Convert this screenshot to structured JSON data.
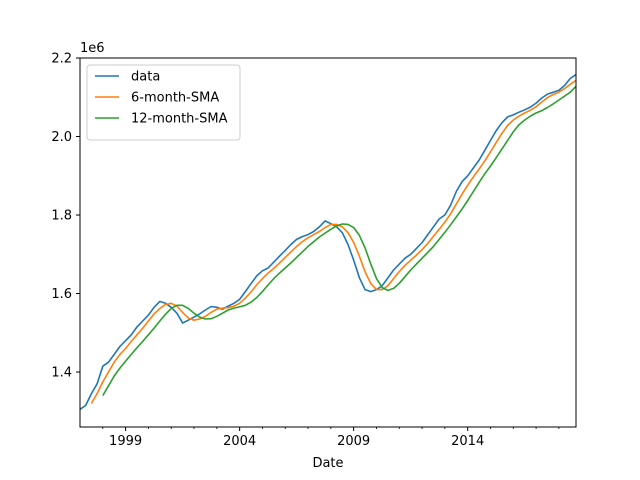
{
  "chart_data": {
    "type": "line",
    "xlabel": "Date",
    "ylabel": "",
    "y_offset_label": "1e6",
    "xlim": [
      1997.0,
      2018.75
    ],
    "ylim": [
      1260000,
      2200000
    ],
    "x_ticks": [
      {
        "value": 1999,
        "label": "1999"
      },
      {
        "value": 2004,
        "label": "2004"
      },
      {
        "value": 2009,
        "label": "2009"
      },
      {
        "value": 2014,
        "label": "2014"
      }
    ],
    "x_minor_ticks": [
      1998,
      2000,
      2001,
      2002,
      2003,
      2005,
      2006,
      2007,
      2008,
      2010,
      2011,
      2012,
      2013,
      2015,
      2016,
      2017,
      2018
    ],
    "y_ticks": [
      {
        "value": 1400000,
        "label": "1.4"
      },
      {
        "value": 1600000,
        "label": "1.6"
      },
      {
        "value": 1800000,
        "label": "1.8"
      },
      {
        "value": 2000000,
        "label": "2.0"
      },
      {
        "value": 2200000,
        "label": "2.2"
      }
    ],
    "legend": "top-left",
    "grid": false,
    "series": [
      {
        "name": "data",
        "color": "#1f77b4",
        "x": [
          1997.0,
          1997.25,
          1997.5,
          1997.75,
          1998.0,
          1998.25,
          1998.5,
          1998.75,
          1999.0,
          1999.25,
          1999.5,
          1999.75,
          2000.0,
          2000.25,
          2000.5,
          2000.75,
          2001.0,
          2001.25,
          2001.5,
          2001.75,
          2002.0,
          2002.25,
          2002.5,
          2002.75,
          2003.0,
          2003.25,
          2003.5,
          2003.75,
          2004.0,
          2004.25,
          2004.5,
          2004.75,
          2005.0,
          2005.25,
          2005.5,
          2005.75,
          2006.0,
          2006.25,
          2006.5,
          2006.75,
          2007.0,
          2007.25,
          2007.5,
          2007.75,
          2008.0,
          2008.25,
          2008.5,
          2008.75,
          2009.0,
          2009.25,
          2009.5,
          2009.75,
          2010.0,
          2010.25,
          2010.5,
          2010.75,
          2011.0,
          2011.25,
          2011.5,
          2011.75,
          2012.0,
          2012.25,
          2012.5,
          2012.75,
          2013.0,
          2013.25,
          2013.5,
          2013.75,
          2014.0,
          2014.25,
          2014.5,
          2014.75,
          2015.0,
          2015.25,
          2015.5,
          2015.75,
          2016.0,
          2016.25,
          2016.5,
          2016.75,
          2017.0,
          2017.25,
          2017.5,
          2017.75,
          2018.0,
          2018.25,
          2018.5,
          2018.75
        ],
        "y": [
          1305000,
          1315000,
          1345000,
          1370000,
          1415000,
          1425000,
          1445000,
          1465000,
          1480000,
          1495000,
          1515000,
          1530000,
          1545000,
          1565000,
          1580000,
          1575000,
          1565000,
          1550000,
          1525000,
          1532000,
          1540000,
          1548000,
          1558000,
          1567000,
          1565000,
          1560000,
          1568000,
          1575000,
          1585000,
          1605000,
          1625000,
          1645000,
          1658000,
          1665000,
          1680000,
          1695000,
          1710000,
          1725000,
          1738000,
          1745000,
          1750000,
          1758000,
          1770000,
          1785000,
          1778000,
          1770000,
          1755000,
          1725000,
          1685000,
          1640000,
          1610000,
          1605000,
          1610000,
          1620000,
          1640000,
          1660000,
          1675000,
          1690000,
          1700000,
          1715000,
          1730000,
          1750000,
          1770000,
          1790000,
          1800000,
          1825000,
          1860000,
          1885000,
          1900000,
          1920000,
          1940000,
          1965000,
          1990000,
          2015000,
          2035000,
          2050000,
          2055000,
          2062000,
          2068000,
          2075000,
          2085000,
          2098000,
          2108000,
          2113000,
          2118000,
          2130000,
          2148000,
          2158000
        ]
      },
      {
        "name": "6-month-SMA",
        "color": "#ff7f0e",
        "x": [
          1997.5,
          1997.75,
          1998.0,
          1998.25,
          1998.5,
          1998.75,
          1999.0,
          1999.25,
          1999.5,
          1999.75,
          2000.0,
          2000.25,
          2000.5,
          2000.75,
          2001.0,
          2001.25,
          2001.5,
          2001.75,
          2002.0,
          2002.25,
          2002.5,
          2002.75,
          2003.0,
          2003.25,
          2003.5,
          2003.75,
          2004.0,
          2004.25,
          2004.5,
          2004.75,
          2005.0,
          2005.25,
          2005.5,
          2005.75,
          2006.0,
          2006.25,
          2006.5,
          2006.75,
          2007.0,
          2007.25,
          2007.5,
          2007.75,
          2008.0,
          2008.25,
          2008.5,
          2008.75,
          2009.0,
          2009.25,
          2009.5,
          2009.75,
          2010.0,
          2010.25,
          2010.5,
          2010.75,
          2011.0,
          2011.25,
          2011.5,
          2011.75,
          2012.0,
          2012.25,
          2012.5,
          2012.75,
          2013.0,
          2013.25,
          2013.5,
          2013.75,
          2014.0,
          2014.25,
          2014.5,
          2014.75,
          2015.0,
          2015.25,
          2015.5,
          2015.75,
          2016.0,
          2016.25,
          2016.5,
          2016.75,
          2017.0,
          2017.25,
          2017.5,
          2017.75,
          2018.0,
          2018.25,
          2018.5,
          2018.75
        ],
        "y": [
          1320000,
          1345000,
          1375000,
          1400000,
          1425000,
          1445000,
          1460000,
          1478000,
          1495000,
          1512000,
          1530000,
          1548000,
          1562000,
          1572000,
          1575000,
          1568000,
          1552000,
          1538000,
          1532000,
          1535000,
          1542000,
          1552000,
          1560000,
          1563000,
          1564000,
          1568000,
          1575000,
          1588000,
          1604000,
          1622000,
          1638000,
          1652000,
          1664000,
          1678000,
          1692000,
          1706000,
          1720000,
          1732000,
          1742000,
          1750000,
          1758000,
          1768000,
          1776000,
          1776000,
          1770000,
          1755000,
          1730000,
          1695000,
          1655000,
          1625000,
          1610000,
          1610000,
          1620000,
          1638000,
          1656000,
          1672000,
          1685000,
          1698000,
          1712000,
          1728000,
          1746000,
          1764000,
          1782000,
          1803000,
          1828000,
          1853000,
          1876000,
          1897000,
          1917000,
          1938000,
          1961000,
          1985000,
          2008000,
          2028000,
          2042000,
          2052000,
          2060000,
          2067000,
          2076000,
          2088000,
          2099000,
          2107000,
          2113000,
          2122000,
          2133000,
          2143000
        ]
      },
      {
        "name": "12-month-SMA",
        "color": "#2ca02c",
        "x": [
          1998.0,
          1998.25,
          1998.5,
          1998.75,
          1999.0,
          1999.25,
          1999.5,
          1999.75,
          2000.0,
          2000.25,
          2000.5,
          2000.75,
          2001.0,
          2001.25,
          2001.5,
          2001.75,
          2002.0,
          2002.25,
          2002.5,
          2002.75,
          2003.0,
          2003.25,
          2003.5,
          2003.75,
          2004.0,
          2004.25,
          2004.5,
          2004.75,
          2005.0,
          2005.25,
          2005.5,
          2005.75,
          2006.0,
          2006.25,
          2006.5,
          2006.75,
          2007.0,
          2007.25,
          2007.5,
          2007.75,
          2008.0,
          2008.25,
          2008.5,
          2008.75,
          2009.0,
          2009.25,
          2009.5,
          2009.75,
          2010.0,
          2010.25,
          2010.5,
          2010.75,
          2011.0,
          2011.25,
          2011.5,
          2011.75,
          2012.0,
          2012.25,
          2012.5,
          2012.75,
          2013.0,
          2013.25,
          2013.5,
          2013.75,
          2014.0,
          2014.25,
          2014.5,
          2014.75,
          2015.0,
          2015.25,
          2015.5,
          2015.75,
          2016.0,
          2016.25,
          2016.5,
          2016.75,
          2017.0,
          2017.25,
          2017.5,
          2017.75,
          2018.0,
          2018.25,
          2018.5,
          2018.75
        ],
        "y": [
          1340000,
          1365000,
          1390000,
          1410000,
          1428000,
          1445000,
          1462000,
          1478000,
          1495000,
          1512000,
          1530000,
          1547000,
          1562000,
          1570000,
          1570000,
          1562000,
          1550000,
          1540000,
          1535000,
          1536000,
          1542000,
          1550000,
          1558000,
          1563000,
          1566000,
          1570000,
          1578000,
          1590000,
          1605000,
          1622000,
          1638000,
          1652000,
          1665000,
          1678000,
          1692000,
          1706000,
          1720000,
          1732000,
          1744000,
          1754000,
          1764000,
          1772000,
          1777000,
          1776000,
          1768000,
          1748000,
          1716000,
          1675000,
          1638000,
          1615000,
          1608000,
          1613000,
          1626000,
          1643000,
          1660000,
          1675000,
          1690000,
          1705000,
          1720000,
          1738000,
          1756000,
          1775000,
          1795000,
          1815000,
          1837000,
          1860000,
          1883000,
          1905000,
          1925000,
          1946000,
          1968000,
          1990000,
          2012000,
          2030000,
          2042000,
          2052000,
          2060000,
          2066000,
          2074000,
          2083000,
          2093000,
          2103000,
          2113000,
          2128000
        ]
      }
    ]
  }
}
